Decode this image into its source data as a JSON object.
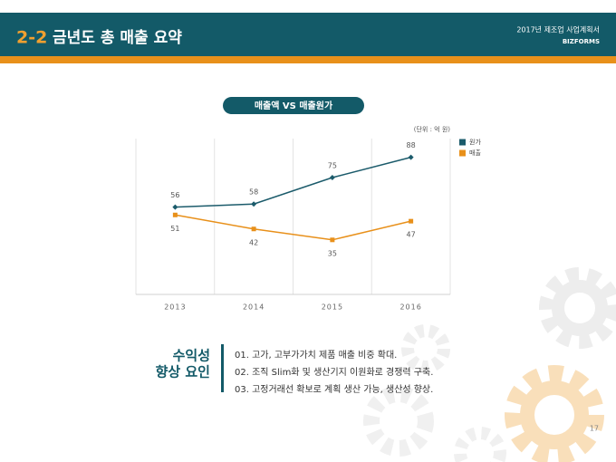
{
  "header": {
    "number": "2-2",
    "title": "금년도 총 매출 요약",
    "doc": "2017년 제조업 사업계획서",
    "brand": "BIZFORMS"
  },
  "chart_data": {
    "type": "line",
    "title": "매출액 VS 매출원가",
    "unit": "(단위 : 억 원)",
    "categories": [
      "2013",
      "2014",
      "2015",
      "2016"
    ],
    "series": [
      {
        "name": "원가",
        "color": "#1b5b6b",
        "values": [
          56,
          58,
          75,
          88
        ]
      },
      {
        "name": "매출",
        "color": "#e8901a",
        "values": [
          51,
          42,
          35,
          47
        ]
      }
    ],
    "ylim": [
      0,
      100
    ],
    "legend": "right"
  },
  "factors": {
    "label": [
      "수익성",
      "향상 요인"
    ],
    "items": [
      "01. 고가, 고부가가치 제품 매출 비중 확대.",
      "02. 조직 Slim화 및 생산기지 이원화로 경쟁력 구축.",
      "03. 고정거래선 확보로 계획 생산 가능, 생산성 향상."
    ]
  },
  "page": "17"
}
